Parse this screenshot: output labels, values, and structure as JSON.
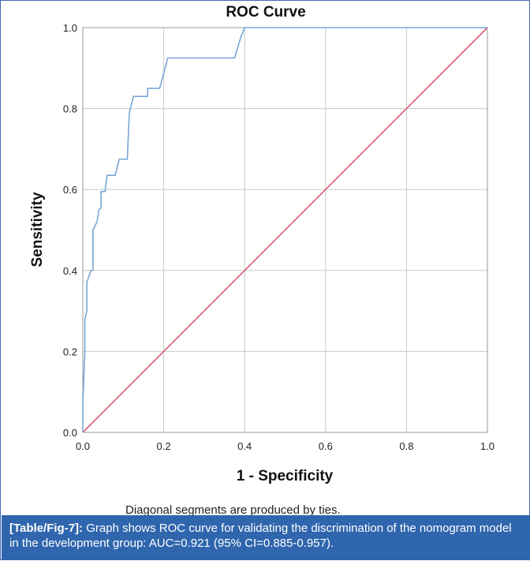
{
  "chart_data": {
    "type": "line",
    "title": "ROC Curve",
    "xlabel": "1 - Specificity",
    "ylabel": "Sensitivity",
    "xlim": [
      0,
      1
    ],
    "ylim": [
      0,
      1
    ],
    "x_ticks": [
      "0.0",
      "0.2",
      "0.4",
      "0.6",
      "0.8",
      "1.0"
    ],
    "y_ticks": [
      "0.0",
      "0.2",
      "0.4",
      "0.6",
      "0.8",
      "1.0"
    ],
    "grid": true,
    "series": [
      {
        "color": "#7aa6d6",
        "points": [
          [
            0.0,
            0.0
          ],
          [
            0.0,
            0.07
          ],
          [
            0.005,
            0.2
          ],
          [
            0.005,
            0.28
          ],
          [
            0.01,
            0.3
          ],
          [
            0.01,
            0.37
          ],
          [
            0.02,
            0.4
          ],
          [
            0.025,
            0.4
          ],
          [
            0.025,
            0.5
          ],
          [
            0.035,
            0.52
          ],
          [
            0.04,
            0.55
          ],
          [
            0.045,
            0.555
          ],
          [
            0.045,
            0.595
          ],
          [
            0.055,
            0.595
          ],
          [
            0.06,
            0.635
          ],
          [
            0.08,
            0.635
          ],
          [
            0.09,
            0.675
          ],
          [
            0.11,
            0.675
          ],
          [
            0.115,
            0.79
          ],
          [
            0.125,
            0.83
          ],
          [
            0.16,
            0.83
          ],
          [
            0.16,
            0.85
          ],
          [
            0.19,
            0.85
          ],
          [
            0.21,
            0.925
          ],
          [
            0.375,
            0.925
          ],
          [
            0.39,
            0.975
          ],
          [
            0.4,
            1.0
          ],
          [
            1.0,
            1.0
          ]
        ]
      },
      {
        "color": "#e05a72",
        "points": [
          [
            0,
            0
          ],
          [
            1,
            1
          ]
        ]
      }
    ],
    "footnote": "Diagonal segments are produced by ties."
  },
  "caption": {
    "tag": "[Table/Fig-7]:",
    "text": "Graph shows ROC curve for validating the discrimination of the nomogram model in the development group: AUC=0.921 (95% CI=0.885-0.957)."
  }
}
